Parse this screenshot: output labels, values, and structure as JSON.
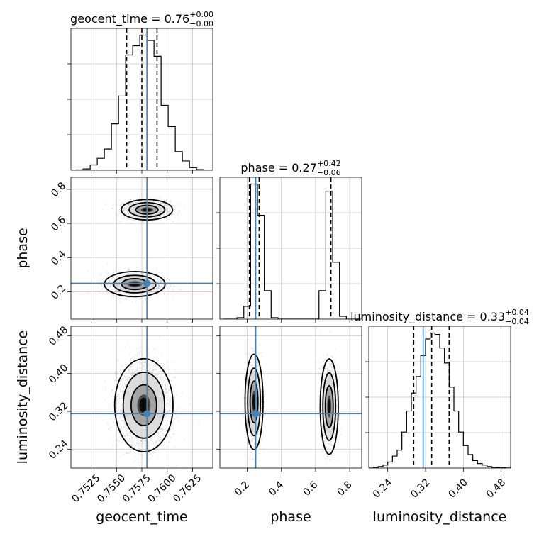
{
  "chart_data": {
    "type": "corner",
    "parameters": [
      "geocent_time",
      "phase",
      "luminosity_distance"
    ],
    "axis_labels": [
      "geocent_time",
      "phase",
      "luminosity_distance"
    ],
    "ranges": [
      [
        0.7505,
        0.7645
      ],
      [
        0.04,
        0.87
      ],
      [
        0.2,
        0.5
      ]
    ],
    "ticks": [
      {
        "values": [
          0.7525,
          0.755,
          0.7575,
          0.76,
          0.7625
        ],
        "labels": [
          "0.7525",
          "0.7550",
          "0.7575",
          "0.7600",
          "0.7625"
        ]
      },
      {
        "values": [
          0.2,
          0.4,
          0.6,
          0.8
        ],
        "labels": [
          "0.2",
          "0.4",
          "0.6",
          "0.8"
        ]
      },
      {
        "values": [
          0.24,
          0.32,
          0.4,
          0.48
        ],
        "labels": [
          "0.24",
          "0.32",
          "0.40",
          "0.48"
        ]
      }
    ],
    "truths": [
      0.758,
      0.25,
      0.315
    ],
    "diagonal_titles": [
      {
        "name": "geocent_time",
        "value": "0.76",
        "upper": "+0.00",
        "lower": "−0.00"
      },
      {
        "name": "phase",
        "value": "0.27",
        "upper": "+0.42",
        "lower": "−0.06"
      },
      {
        "name": "luminosity_distance",
        "value": "0.33",
        "upper": "+0.04",
        "lower": "−0.04"
      }
    ],
    "quantiles": [
      [
        0.756,
        0.7575,
        0.759
      ],
      [
        0.213,
        0.27,
        0.69
      ],
      [
        0.295,
        0.333,
        0.37
      ]
    ],
    "histograms": [
      {
        "edges": [
          0.751,
          0.7517,
          0.7524,
          0.7531,
          0.7538,
          0.7545,
          0.7552,
          0.7559,
          0.7566,
          0.7573,
          0.758,
          0.7587,
          0.7594,
          0.7601,
          0.7608,
          0.7615,
          0.7622,
          0.7629,
          0.7636
        ],
        "counts": [
          0.3,
          1,
          4,
          9,
          16,
          35,
          56,
          87,
          94,
          102,
          98,
          86,
          49,
          33,
          14,
          7,
          2,
          0.5
        ]
      },
      {
        "edges": [
          0.06,
          0.1,
          0.14,
          0.18,
          0.22,
          0.26,
          0.3,
          0.34,
          0.38,
          0.42,
          0.46,
          0.5,
          0.54,
          0.58,
          0.62,
          0.66,
          0.7,
          0.74,
          0.78,
          0.82,
          0.86
        ],
        "counts": [
          0,
          0,
          1,
          9,
          95,
          73,
          20,
          1,
          0,
          0,
          0,
          0,
          0,
          0,
          20,
          90,
          40,
          2,
          0,
          0
        ]
      },
      {
        "edges": [
          0.2,
          0.21,
          0.22,
          0.23,
          0.24,
          0.25,
          0.26,
          0.27,
          0.28,
          0.29,
          0.3,
          0.31,
          0.32,
          0.33,
          0.34,
          0.35,
          0.36,
          0.37,
          0.38,
          0.39,
          0.4,
          0.41,
          0.42,
          0.43,
          0.44,
          0.45,
          0.46,
          0.47,
          0.48,
          0.49,
          0.5
        ],
        "counts": [
          0,
          0.5,
          1,
          2,
          4,
          8,
          12,
          24,
          38,
          50,
          61,
          75,
          86,
          90,
          89,
          80,
          70,
          54,
          38,
          24,
          15,
          9,
          5,
          3,
          2,
          1,
          0.5,
          0.3,
          0.2,
          0
        ]
      }
    ],
    "blobs": {
      "1_0": [
        {
          "cx": 0.758,
          "cy": 0.68,
          "sx": 0.0011,
          "sy": 0.026,
          "w": 0.48
        },
        {
          "cx": 0.7568,
          "cy": 0.245,
          "sx": 0.0013,
          "sy": 0.032,
          "w": 0.52
        }
      ],
      "2_0": [
        {
          "cx": 0.7577,
          "cy": 0.333,
          "sx": 0.0012,
          "sy": 0.041,
          "w": 1.0
        }
      ],
      "2_1": [
        {
          "cx": 0.24,
          "cy": 0.34,
          "sx": 0.022,
          "sy": 0.042,
          "w": 0.52
        },
        {
          "cx": 0.68,
          "cy": 0.33,
          "sx": 0.022,
          "sy": 0.042,
          "w": 0.48
        }
      ]
    },
    "contour_scales": {
      "1_0": [
        0.55,
        1.0,
        1.6,
        2.3
      ],
      "2_0": [
        0.55,
        1.05,
        1.7,
        2.4
      ],
      "2_1": [
        0.55,
        1.05,
        1.7,
        2.4
      ]
    },
    "colors": {
      "truth": "#4682b4",
      "hist": "#000000",
      "grid": "#c8c8c8",
      "points": "#808080"
    }
  }
}
